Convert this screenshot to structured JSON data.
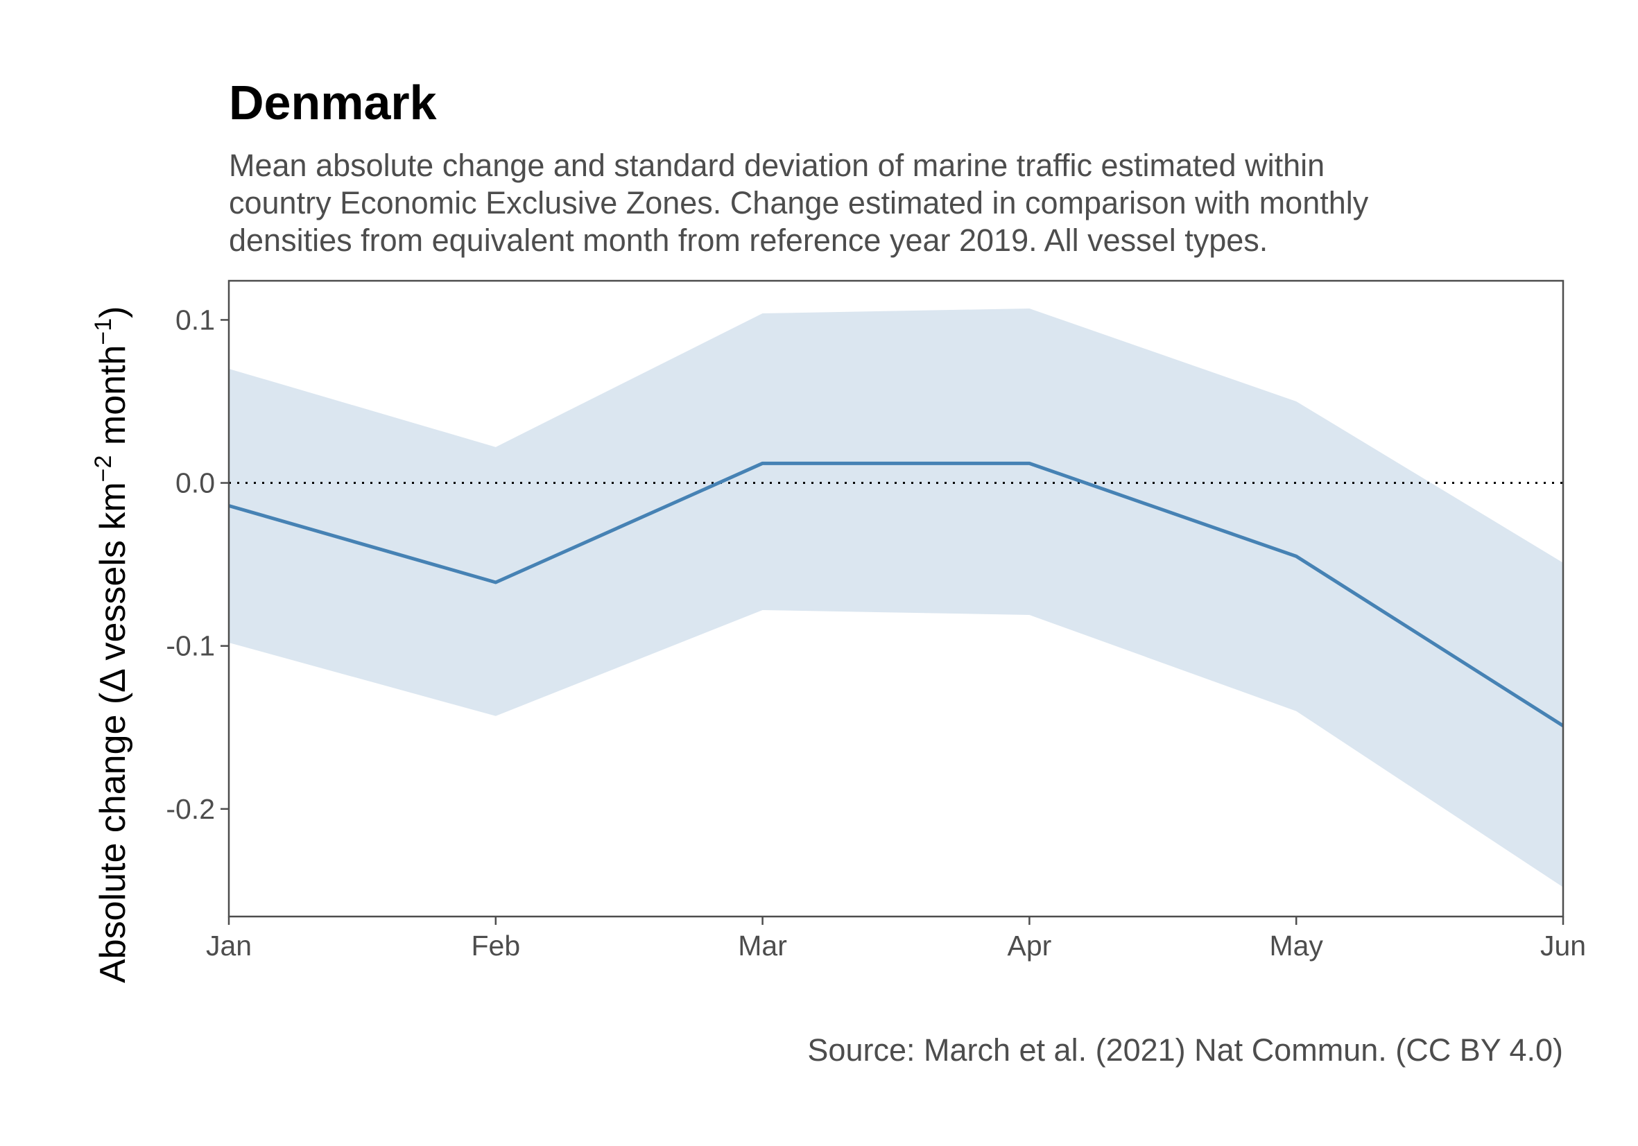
{
  "chart_data": {
    "type": "area",
    "title": "Denmark",
    "subtitle": [
      "Mean absolute change and standard deviation of marine traffic estimated within",
      "country Economic Exclusive Zones. Change estimated in comparison with monthly",
      "densities from equivalent month from reference year 2019. All vessel types."
    ],
    "ylabel": {
      "prefix": "Absolute change (",
      "delta": "Δ",
      "vessels_km": " vessels km",
      "exp1": "−2",
      "month": " month",
      "exp2": "−1",
      "suffix": ")"
    },
    "caption": "Source: March et al. (2021) Nat Commun. (CC BY 4.0)",
    "categories": [
      "Jan",
      "Feb",
      "Mar",
      "Apr",
      "May",
      "Jun"
    ],
    "series": [
      {
        "mean": [
          -0.014,
          -0.061,
          0.012,
          0.012,
          -0.045,
          -0.149
        ],
        "upper": [
          0.07,
          0.022,
          0.104,
          0.107,
          0.05,
          -0.049
        ],
        "lower": [
          -0.098,
          -0.143,
          -0.078,
          -0.081,
          -0.14,
          -0.248
        ]
      }
    ],
    "yticks": [
      0.1,
      0.0,
      -0.1,
      -0.2
    ],
    "ytick_labels": [
      "0.1",
      "0.0",
      "-0.1",
      "-0.2"
    ],
    "ylim": [
      -0.266,
      0.124
    ],
    "reference_line": 0,
    "grid": false,
    "colors": {
      "line": "#4682b4",
      "ribbon": "#dbe6f0",
      "axis": "#4d4d4d",
      "reference": "#000000"
    }
  }
}
